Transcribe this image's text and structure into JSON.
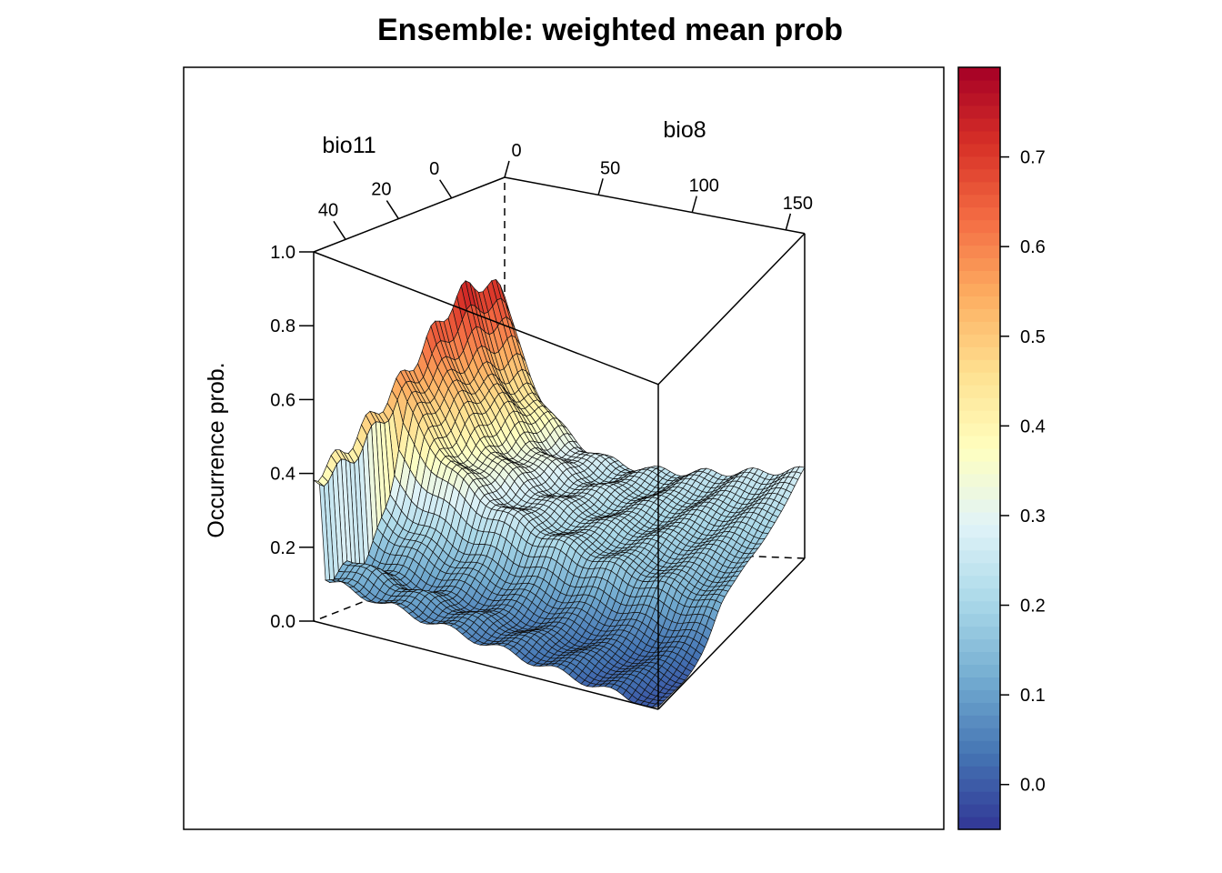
{
  "chart_data": {
    "type": "surface3d",
    "title": "Ensemble: weighted mean prob",
    "zlabel": "Occurrence prob.",
    "axes": {
      "bio11": {
        "label": "bio11",
        "range": [
          -20,
          52
        ],
        "ticks": [
          "0",
          "20",
          "40"
        ]
      },
      "bio8": {
        "label": "bio8",
        "range": [
          0,
          160
        ],
        "ticks": [
          "0",
          "50",
          "100",
          "150"
        ]
      },
      "z": {
        "label": "Occurrence prob.",
        "range": [
          0,
          1
        ],
        "ticks": [
          "0.0",
          "0.2",
          "0.4",
          "0.6",
          "0.8",
          "1.0"
        ]
      }
    },
    "surface_summary": {
      "peak_value": 0.79,
      "peak_location": {
        "bio11": -12,
        "bio8": 4
      },
      "corner_values": {
        "bio11_max_bio8_0": 0.37,
        "bio11_max_bio8_max": 0.0,
        "bio11_min_bio8_max": 0.27,
        "bio11_min_bio8_0": 0.16
      }
    },
    "colorbar": {
      "range": [
        -0.05,
        0.8
      ],
      "ticks": [
        "0.0",
        "0.1",
        "0.2",
        "0.3",
        "0.4",
        "0.5",
        "0.6",
        "0.7"
      ],
      "palette": [
        "#313695",
        "#4575b4",
        "#74add1",
        "#abd9e9",
        "#e0f3f8",
        "#ffffbf",
        "#fee090",
        "#fdae61",
        "#f46d43",
        "#d73027",
        "#a50026"
      ]
    }
  }
}
